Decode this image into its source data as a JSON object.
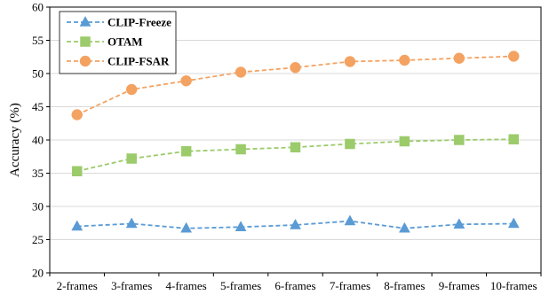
{
  "chart_data": {
    "type": "line",
    "title": "",
    "xlabel": "",
    "ylabel": "Accuracy (%)",
    "ylim": [
      20,
      60
    ],
    "yticks": [
      20,
      25,
      30,
      35,
      40,
      45,
      50,
      55,
      60
    ],
    "grid": "horizontal",
    "legend_position": "top-left",
    "categories": [
      "2-frames",
      "3-frames",
      "4-frames",
      "5-frames",
      "6-frames",
      "7-frames",
      "8-frames",
      "9-frames",
      "10-frames"
    ],
    "series": [
      {
        "name": "CLIP-Freeze",
        "color": "#5B9BD5",
        "marker": "triangle",
        "values": [
          27.0,
          27.4,
          26.7,
          26.9,
          27.2,
          27.8,
          26.7,
          27.3,
          27.4
        ]
      },
      {
        "name": "OTAM",
        "color": "#9BCB6B",
        "marker": "square",
        "values": [
          35.3,
          37.2,
          38.3,
          38.6,
          38.9,
          39.4,
          39.8,
          40.0,
          40.1
        ]
      },
      {
        "name": "CLIP-FSAR",
        "color": "#F4A261",
        "marker": "circle",
        "values": [
          43.8,
          47.6,
          48.9,
          50.2,
          50.9,
          51.8,
          52.0,
          52.3,
          52.6
        ]
      }
    ]
  }
}
